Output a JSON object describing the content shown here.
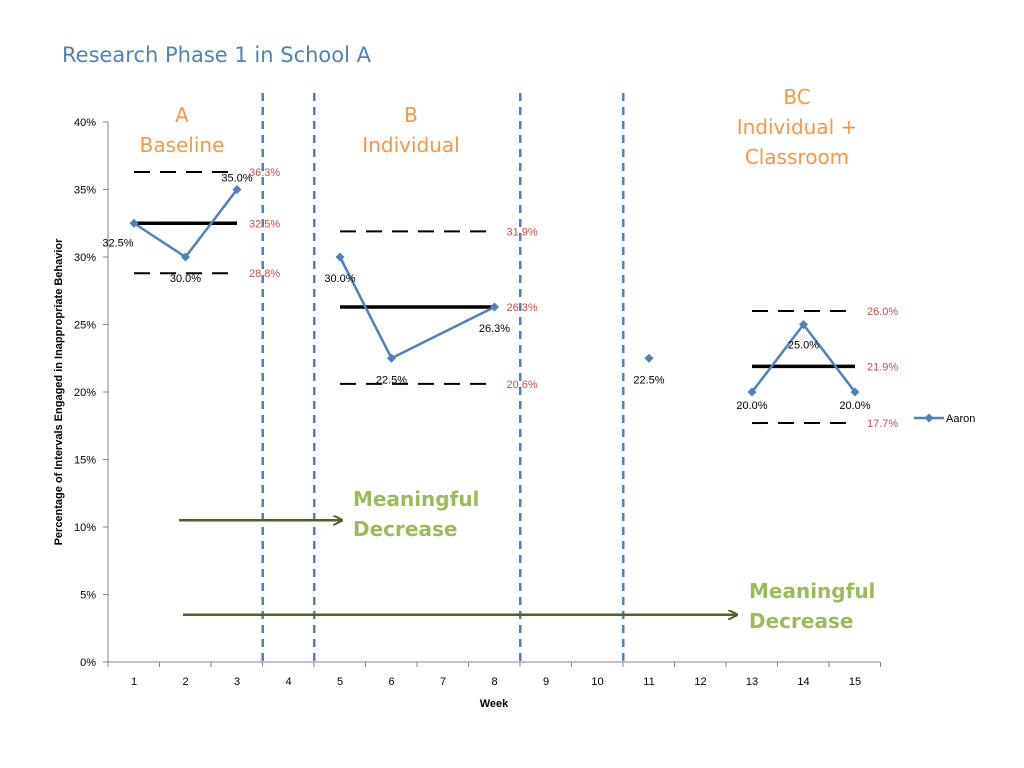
{
  "slide_title": "Research Phase 1 in School A",
  "colors": {
    "title": "#4F81BD",
    "phase": "#F79646",
    "series": "#4F81BD",
    "stat_label": "#C0504D",
    "annotation_text": "#9BBB59",
    "arrow": "#4F6228",
    "phase_line": "#4F81BD"
  },
  "phases": [
    {
      "lines": [
        "A",
        "Baseline"
      ]
    },
    {
      "lines": [
        "B",
        "Individual"
      ]
    },
    {
      "lines": [
        "BC",
        "Individual +",
        "Classroom"
      ]
    }
  ],
  "annotations": [
    {
      "lines": [
        "Meaningful",
        "Decrease"
      ]
    },
    {
      "lines": [
        "Meaningful",
        "Decrease"
      ]
    }
  ],
  "chart_data": {
    "type": "line",
    "xlabel": "Week",
    "ylabel": "Percentage of Intervals Engaged in Inappropriate Behavior",
    "x_categories": [
      "1",
      "2",
      "3",
      "4",
      "5",
      "6",
      "7",
      "8",
      "9",
      "10",
      "11",
      "12",
      "13",
      "14",
      "15"
    ],
    "y_ticks": [
      "0%",
      "5%",
      "10%",
      "15%",
      "20%",
      "25%",
      "30%",
      "35%",
      "40%"
    ],
    "ylim": [
      0,
      40
    ],
    "legend": {
      "position": "right"
    },
    "series": [
      {
        "name": "Aaron",
        "segments": [
          [
            {
              "x": 1,
              "y": 32.5,
              "label": "32.5%"
            },
            {
              "x": 2,
              "y": 30.0,
              "label": "30.0%"
            },
            {
              "x": 3,
              "y": 35.0,
              "label": "35.0%"
            }
          ],
          [
            {
              "x": 5,
              "y": 30.0,
              "label": "30.0%"
            },
            {
              "x": 6,
              "y": 22.5,
              "label": "22.5%"
            },
            {
              "x": 8,
              "y": 26.3,
              "label": "26.3%"
            }
          ],
          [
            {
              "x": 11,
              "y": 22.5,
              "label": "22.5%"
            }
          ],
          [
            {
              "x": 13,
              "y": 20.0,
              "label": "20.0%"
            },
            {
              "x": 14,
              "y": 25.0,
              "label": "25.0%"
            },
            {
              "x": 15,
              "y": 20.0,
              "label": "20.0%"
            }
          ]
        ]
      }
    ],
    "phase_change_lines_between_weeks": [
      [
        3,
        4
      ],
      [
        4,
        5
      ],
      [
        8,
        9
      ],
      [
        10,
        11
      ]
    ],
    "reference_lines": [
      {
        "x_start": 1,
        "x_end": 3,
        "upper": 36.3,
        "mean": 32.5,
        "lower": 28.8,
        "labels": [
          "36.3%",
          "32.5%",
          "28.8%"
        ]
      },
      {
        "x_start": 5,
        "x_end": 8,
        "upper": 31.9,
        "mean": 26.3,
        "lower": 20.6,
        "labels": [
          "31.9%",
          "26.3%",
          "20.6%"
        ]
      },
      {
        "x_start": 13,
        "x_end": 15,
        "upper": 26.0,
        "mean": 21.9,
        "lower": 17.7,
        "labels": [
          "26.0%",
          "21.9%",
          "17.7%"
        ]
      }
    ],
    "arrows": [
      {
        "from_week": 2,
        "to_week": 5,
        "y": 10.5
      },
      {
        "from_week": 2,
        "to_week": 13,
        "y": 3.5
      }
    ]
  }
}
